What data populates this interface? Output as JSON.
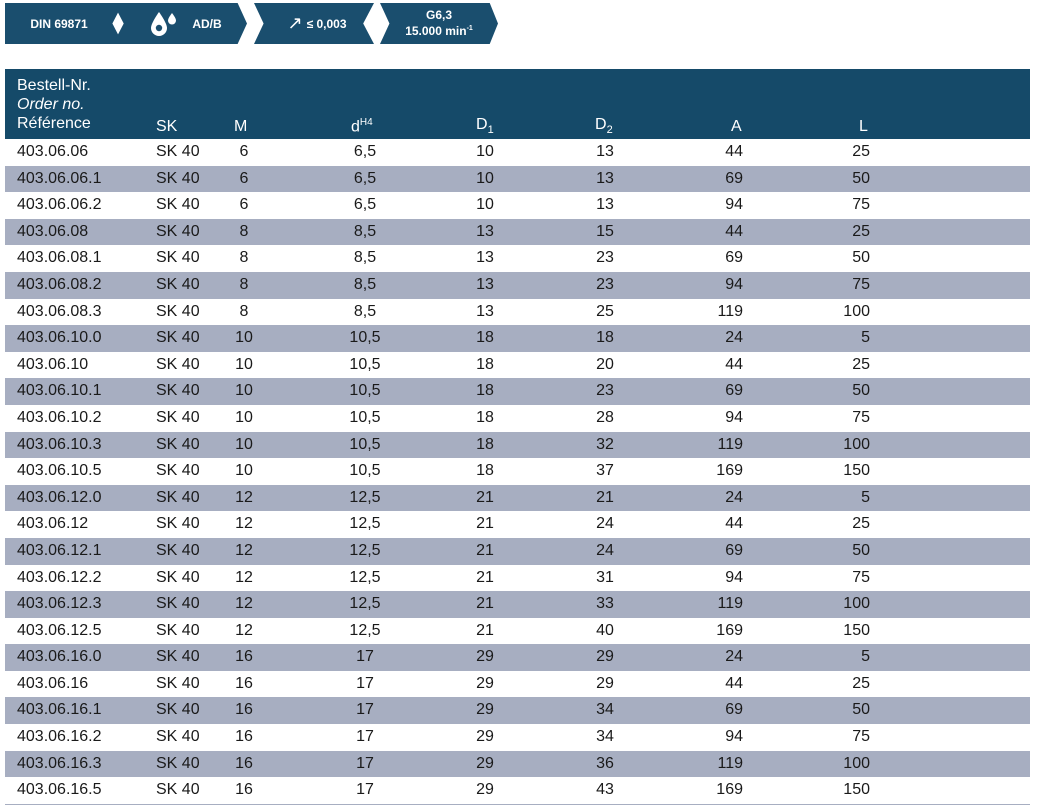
{
  "badges": {
    "din": "DIN 69871",
    "coolant": "AD/B",
    "runout": "≤ 0,003",
    "balance": "G6,3",
    "speed": "15.000 min",
    "speed_exp": "-1"
  },
  "header": {
    "ref_de": "Bestell-Nr.",
    "ref_en": "Order no.",
    "ref_fr": "Référence",
    "sk": "SK",
    "m": "M",
    "d": "d",
    "d_sup": "H4",
    "d1": "D",
    "d1_sub": "1",
    "d2": "D",
    "d2_sub": "2",
    "a": "A",
    "l": "L"
  },
  "rows": [
    [
      "403.06.06",
      "SK 40",
      "6",
      "6,5",
      "10",
      "13",
      "44",
      "25"
    ],
    [
      "403.06.06.1",
      "SK 40",
      "6",
      "6,5",
      "10",
      "13",
      "69",
      "50"
    ],
    [
      "403.06.06.2",
      "SK 40",
      "6",
      "6,5",
      "10",
      "13",
      "94",
      "75"
    ],
    [
      "403.06.08",
      "SK 40",
      "8",
      "8,5",
      "13",
      "15",
      "44",
      "25"
    ],
    [
      "403.06.08.1",
      "SK 40",
      "8",
      "8,5",
      "13",
      "23",
      "69",
      "50"
    ],
    [
      "403.06.08.2",
      "SK 40",
      "8",
      "8,5",
      "13",
      "23",
      "94",
      "75"
    ],
    [
      "403.06.08.3",
      "SK 40",
      "8",
      "8,5",
      "13",
      "25",
      "119",
      "100"
    ],
    [
      "403.06.10.0",
      "SK 40",
      "10",
      "10,5",
      "18",
      "18",
      "24",
      "5"
    ],
    [
      "403.06.10",
      "SK 40",
      "10",
      "10,5",
      "18",
      "20",
      "44",
      "25"
    ],
    [
      "403.06.10.1",
      "SK 40",
      "10",
      "10,5",
      "18",
      "23",
      "69",
      "50"
    ],
    [
      "403.06.10.2",
      "SK 40",
      "10",
      "10,5",
      "18",
      "28",
      "94",
      "75"
    ],
    [
      "403.06.10.3",
      "SK 40",
      "10",
      "10,5",
      "18",
      "32",
      "119",
      "100"
    ],
    [
      "403.06.10.5",
      "SK 40",
      "10",
      "10,5",
      "18",
      "37",
      "169",
      "150"
    ],
    [
      "403.06.12.0",
      "SK 40",
      "12",
      "12,5",
      "21",
      "21",
      "24",
      "5"
    ],
    [
      "403.06.12",
      "SK 40",
      "12",
      "12,5",
      "21",
      "24",
      "44",
      "25"
    ],
    [
      "403.06.12.1",
      "SK 40",
      "12",
      "12,5",
      "21",
      "24",
      "69",
      "50"
    ],
    [
      "403.06.12.2",
      "SK 40",
      "12",
      "12,5",
      "21",
      "31",
      "94",
      "75"
    ],
    [
      "403.06.12.3",
      "SK 40",
      "12",
      "12,5",
      "21",
      "33",
      "119",
      "100"
    ],
    [
      "403.06.12.5",
      "SK 40",
      "12",
      "12,5",
      "21",
      "40",
      "169",
      "150"
    ],
    [
      "403.06.16.0",
      "SK 40",
      "16",
      "17",
      "29",
      "29",
      "24",
      "5"
    ],
    [
      "403.06.16",
      "SK 40",
      "16",
      "17",
      "29",
      "29",
      "44",
      "25"
    ],
    [
      "403.06.16.1",
      "SK 40",
      "16",
      "17",
      "29",
      "34",
      "69",
      "50"
    ],
    [
      "403.06.16.2",
      "SK 40",
      "16",
      "17",
      "29",
      "34",
      "94",
      "75"
    ],
    [
      "403.06.16.3",
      "SK 40",
      "16",
      "17",
      "29",
      "36",
      "119",
      "100"
    ],
    [
      "403.06.16.5",
      "SK 40",
      "16",
      "17",
      "29",
      "43",
      "169",
      "150"
    ]
  ]
}
